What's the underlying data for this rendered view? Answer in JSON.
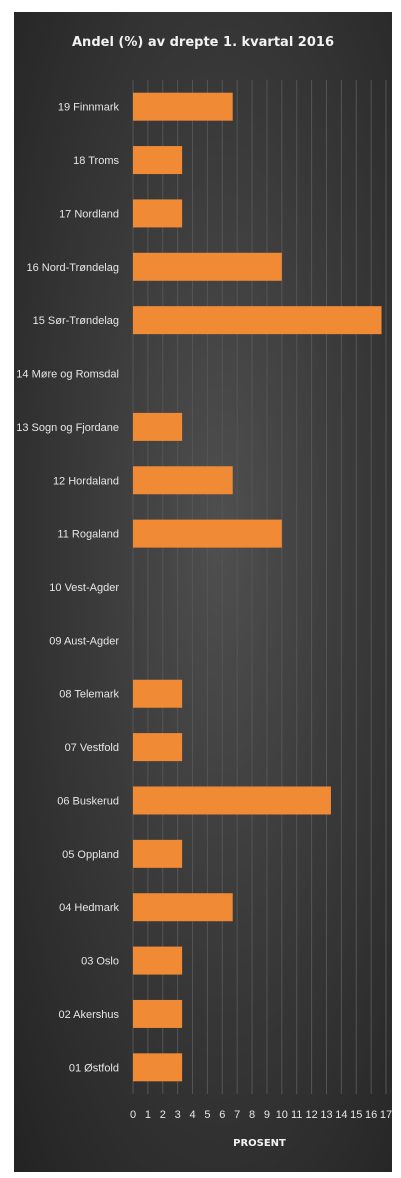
{
  "chart_data": {
    "type": "bar",
    "orientation": "horizontal",
    "title": "Andel (%) av drepte 1. kvartal 2016",
    "xlabel": "PROSENT",
    "ylabel": "",
    "xlim": [
      0,
      17
    ],
    "xticks": [
      0,
      1,
      2,
      3,
      4,
      5,
      6,
      7,
      8,
      9,
      10,
      11,
      12,
      13,
      14,
      15,
      16,
      17
    ],
    "grid": true,
    "bar_color": "#f08a35",
    "categories": [
      "19 Finnmark",
      "18 Troms",
      "17 Nordland",
      "16 Nord-Trøndelag",
      "15 Sør-Trøndelag",
      "14 Møre og Romsdal",
      "13 Sogn og Fjordane",
      "12 Hordaland",
      "11 Rogaland",
      "10 Vest-Agder",
      "09 Aust-Agder",
      "08 Telemark",
      "07 Vestfold",
      "06 Buskerud",
      "05 Oppland",
      "04 Hedmark",
      "03 Oslo",
      "02 Akershus",
      "01 Østfold"
    ],
    "values": [
      6.7,
      3.3,
      3.3,
      10.0,
      16.7,
      0,
      3.3,
      6.7,
      10.0,
      0,
      0,
      3.3,
      3.3,
      13.3,
      3.3,
      6.7,
      3.3,
      3.3,
      3.3
    ]
  }
}
